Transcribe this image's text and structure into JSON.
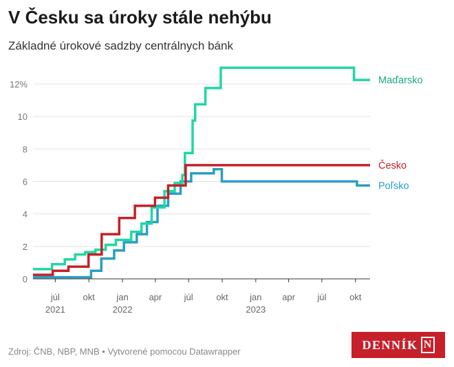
{
  "title": "V Česku sa úroky stále nehýbu",
  "subtitle": "Základné úrokové sadzby centrálnych bánk",
  "footer": "Zdroj: ČNB, NBP, MNB • Vytvorené pomocou Datawrapper",
  "logo": {
    "text": "DENNÍK",
    "mark": "N",
    "color": "#c6202a"
  },
  "chart_data": {
    "type": "line",
    "step": true,
    "title": "V Česku sa úroky stále nehýbu",
    "subtitle": "Základné úrokové sadzby centrálnych bánk",
    "xlabel": "",
    "ylabel": "",
    "xlim": [
      "2021-05-01",
      "2023-11-10"
    ],
    "ylim": [
      0,
      13
    ],
    "y_ticks": [
      0,
      2,
      4,
      6,
      8,
      10,
      12
    ],
    "y_tick_labels": [
      "0",
      "2",
      "4",
      "6",
      "8",
      "10",
      "12%"
    ],
    "x_ticks": [
      {
        "date": "2021-07-01",
        "label": "júl",
        "year": "2021"
      },
      {
        "date": "2021-10-01",
        "label": "okt",
        "year": ""
      },
      {
        "date": "2022-01-01",
        "label": "jan",
        "year": "2022"
      },
      {
        "date": "2022-04-01",
        "label": "apr",
        "year": ""
      },
      {
        "date": "2022-07-01",
        "label": "júl",
        "year": ""
      },
      {
        "date": "2022-10-01",
        "label": "okt",
        "year": ""
      },
      {
        "date": "2023-01-01",
        "label": "jan",
        "year": "2023"
      },
      {
        "date": "2023-04-01",
        "label": "apr",
        "year": ""
      },
      {
        "date": "2023-07-01",
        "label": "júl",
        "year": ""
      },
      {
        "date": "2023-10-01",
        "label": "okt",
        "year": ""
      }
    ],
    "grid": true,
    "legend": "direct labels at line ends (right)",
    "series": [
      {
        "name": "Maďarsko",
        "color": "#1fd8a4",
        "label_color": "#18a982",
        "points": [
          [
            "2021-05-01",
            0.6
          ],
          [
            "2021-06-22",
            0.9
          ],
          [
            "2021-07-27",
            1.2
          ],
          [
            "2021-08-24",
            1.5
          ],
          [
            "2021-09-21",
            1.65
          ],
          [
            "2021-10-19",
            1.8
          ],
          [
            "2021-11-16",
            2.1
          ],
          [
            "2021-12-14",
            2.4
          ],
          [
            "2022-01-25",
            2.9
          ],
          [
            "2022-02-22",
            3.4
          ],
          [
            "2022-03-22",
            4.4
          ],
          [
            "2022-04-26",
            5.4
          ],
          [
            "2022-05-24",
            5.9
          ],
          [
            "2022-06-14",
            6.4
          ],
          [
            "2022-06-21",
            7.75
          ],
          [
            "2022-07-12",
            9.75
          ],
          [
            "2022-07-19",
            10.75
          ],
          [
            "2022-08-16",
            11.75
          ],
          [
            "2022-09-27",
            13.0
          ],
          [
            "2023-09-26",
            13.0
          ],
          [
            "2023-09-27",
            12.25
          ],
          [
            "2023-11-10",
            12.25
          ]
        ]
      },
      {
        "name": "Česko",
        "color": "#c32128",
        "label_color": "#c32128",
        "points": [
          [
            "2021-05-01",
            0.25
          ],
          [
            "2021-06-24",
            0.5
          ],
          [
            "2021-08-06",
            0.75
          ],
          [
            "2021-09-30",
            1.5
          ],
          [
            "2021-11-05",
            2.75
          ],
          [
            "2021-12-23",
            3.75
          ],
          [
            "2022-02-04",
            4.5
          ],
          [
            "2022-03-31",
            5.0
          ],
          [
            "2022-05-06",
            5.75
          ],
          [
            "2022-06-23",
            7.0
          ],
          [
            "2023-11-10",
            7.0
          ]
        ]
      },
      {
        "name": "Poľsko",
        "color": "#2a9ec5",
        "label_color": "#2a9ec5",
        "points": [
          [
            "2021-05-01",
            0.1
          ],
          [
            "2021-10-07",
            0.5
          ],
          [
            "2021-11-04",
            1.25
          ],
          [
            "2021-12-09",
            1.75
          ],
          [
            "2022-01-05",
            2.25
          ],
          [
            "2022-02-09",
            2.75
          ],
          [
            "2022-03-09",
            3.5
          ],
          [
            "2022-04-07",
            4.5
          ],
          [
            "2022-05-06",
            5.25
          ],
          [
            "2022-06-09",
            6.0
          ],
          [
            "2022-07-08",
            6.5
          ],
          [
            "2022-09-08",
            6.75
          ],
          [
            "2022-09-30",
            6.0
          ],
          [
            "2023-09-07",
            6.0
          ],
          [
            "2023-10-05",
            5.75
          ],
          [
            "2023-11-10",
            5.75
          ]
        ]
      }
    ]
  }
}
